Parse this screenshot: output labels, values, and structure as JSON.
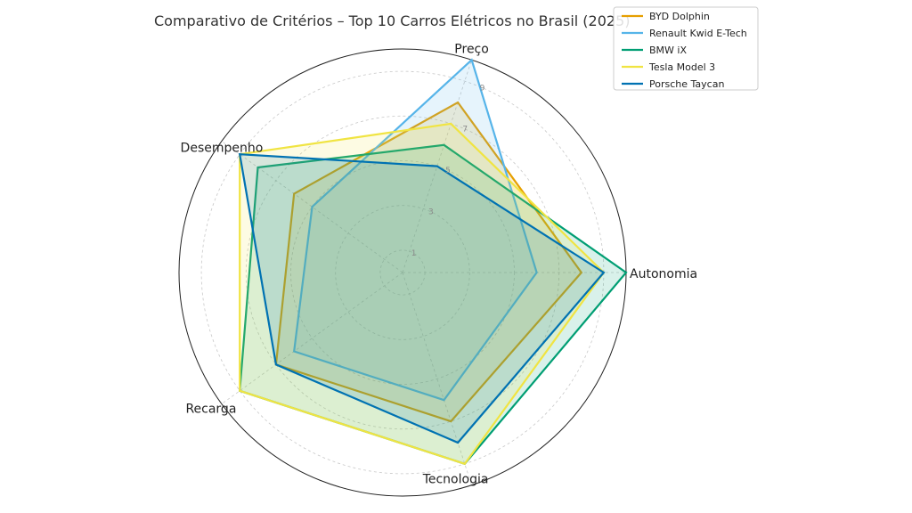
{
  "chart_data": {
    "type": "radar",
    "title": "Comparativo de Critérios – Top 10 Carros Elétricos no Brasil (2025)",
    "axes": [
      "Autonomia",
      "Preço",
      "Desempenho",
      "Recarga",
      "Tecnologia"
    ],
    "rlim": [
      0,
      10
    ],
    "ticks": [
      1,
      3,
      5,
      7,
      9
    ],
    "grid": true,
    "legend_position": "top-right",
    "series": [
      {
        "name": "BYD Dolphin",
        "color": "#E69F00",
        "values": [
          8,
          8,
          6,
          7,
          7
        ]
      },
      {
        "name": "Renault Kwid E-Tech",
        "color": "#56B4E9",
        "values": [
          6,
          10,
          5,
          6,
          6
        ]
      },
      {
        "name": "BMW iX",
        "color": "#009E73",
        "values": [
          10,
          6,
          8,
          9,
          9
        ]
      },
      {
        "name": "Tesla Model 3",
        "color": "#F0E442",
        "values": [
          9,
          7,
          9,
          9,
          9
        ]
      },
      {
        "name": "Porsche Taycan",
        "color": "#0072B2",
        "values": [
          9,
          5,
          9,
          7,
          8
        ]
      }
    ]
  }
}
